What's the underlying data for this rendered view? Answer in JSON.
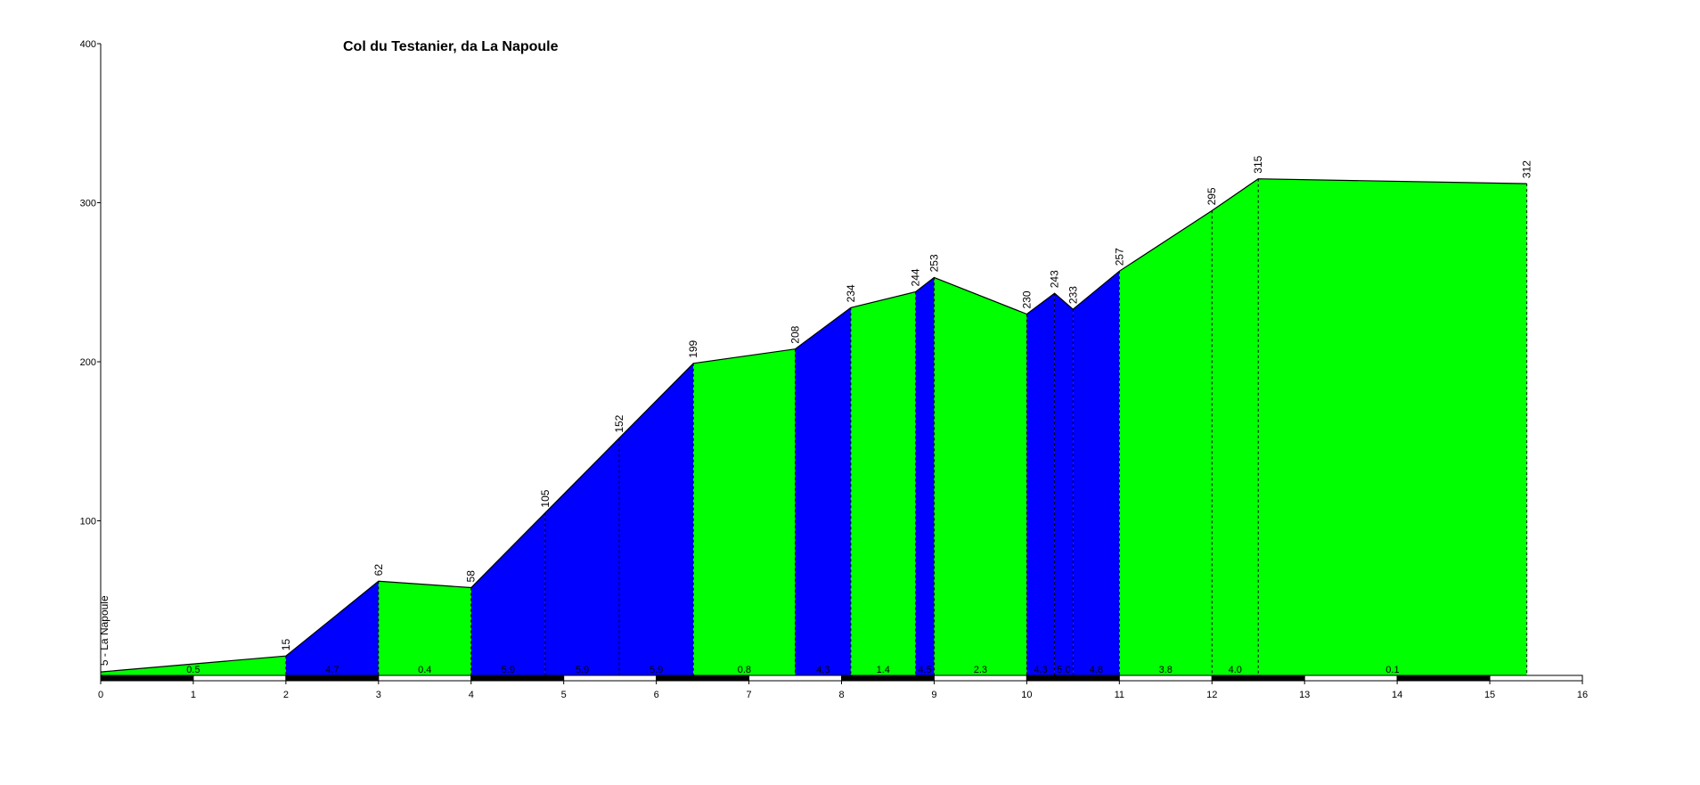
{
  "chart_data": {
    "type": "area",
    "title": "Col du Testanier, da La Napoule",
    "xlim": [
      0,
      16
    ],
    "ylim": [
      0,
      400
    ],
    "x_ticks": [
      "0",
      "1",
      "2",
      "3",
      "4",
      "5",
      "6",
      "7",
      "8",
      "9",
      "10",
      "11",
      "12",
      "13",
      "14",
      "15",
      "16"
    ],
    "y_ticks": [
      "100",
      "200",
      "300",
      "400"
    ],
    "grid": false,
    "start_label": "5 - La Napoule",
    "colors": {
      "ascent": "#0000ff",
      "flat": "#00ff00",
      "outline": "#000000"
    },
    "points": [
      {
        "x": 0.0,
        "y": 5,
        "label": ""
      },
      {
        "x": 2.0,
        "y": 15,
        "label": "15"
      },
      {
        "x": 3.0,
        "y": 62,
        "label": "62"
      },
      {
        "x": 4.0,
        "y": 58,
        "label": "58"
      },
      {
        "x": 4.8,
        "y": 105,
        "label": "105"
      },
      {
        "x": 5.6,
        "y": 152,
        "label": "152"
      },
      {
        "x": 6.4,
        "y": 199,
        "label": "199"
      },
      {
        "x": 7.5,
        "y": 208,
        "label": "208"
      },
      {
        "x": 8.1,
        "y": 234,
        "label": "234"
      },
      {
        "x": 8.8,
        "y": 244,
        "label": "244"
      },
      {
        "x": 9.0,
        "y": 253,
        "label": "253"
      },
      {
        "x": 10.0,
        "y": 230,
        "label": "230"
      },
      {
        "x": 10.3,
        "y": 243,
        "label": "243"
      },
      {
        "x": 10.5,
        "y": 233,
        "label": "233"
      },
      {
        "x": 11.0,
        "y": 257,
        "label": "257"
      },
      {
        "x": 12.0,
        "y": 295,
        "label": "295"
      },
      {
        "x": 12.5,
        "y": 315,
        "label": "315"
      },
      {
        "x": 15.4,
        "y": 312,
        "label": "312"
      }
    ],
    "segments": [
      {
        "x0": 0.0,
        "x1": 2.0,
        "grade": "0.5",
        "climb": false
      },
      {
        "x0": 2.0,
        "x1": 3.0,
        "grade": "4.7",
        "climb": true
      },
      {
        "x0": 3.0,
        "x1": 4.0,
        "grade": "0.4",
        "climb": false
      },
      {
        "x0": 4.0,
        "x1": 4.8,
        "grade": "5.9",
        "climb": true
      },
      {
        "x0": 4.8,
        "x1": 5.6,
        "grade": "5.9",
        "climb": true
      },
      {
        "x0": 5.6,
        "x1": 6.4,
        "grade": "5.9",
        "climb": true
      },
      {
        "x0": 6.4,
        "x1": 7.5,
        "grade": "0.8",
        "climb": false
      },
      {
        "x0": 7.5,
        "x1": 8.1,
        "grade": "4.3",
        "climb": true
      },
      {
        "x0": 8.1,
        "x1": 8.8,
        "grade": "1.4",
        "climb": false
      },
      {
        "x0": 8.8,
        "x1": 9.0,
        "grade": "4.5",
        "climb": true
      },
      {
        "x0": 9.0,
        "x1": 10.0,
        "grade": "2.3",
        "climb": false
      },
      {
        "x0": 10.0,
        "x1": 10.3,
        "grade": "4.3",
        "climb": true
      },
      {
        "x0": 10.3,
        "x1": 10.5,
        "grade": "5.0",
        "climb": true
      },
      {
        "x0": 10.5,
        "x1": 11.0,
        "grade": "4.8",
        "climb": true
      },
      {
        "x0": 11.0,
        "x1": 12.0,
        "grade": "3.8",
        "climb": false
      },
      {
        "x0": 12.0,
        "x1": 12.5,
        "grade": "4.0",
        "climb": false
      },
      {
        "x0": 12.5,
        "x1": 15.4,
        "grade": "0.1",
        "climb": false
      }
    ]
  }
}
